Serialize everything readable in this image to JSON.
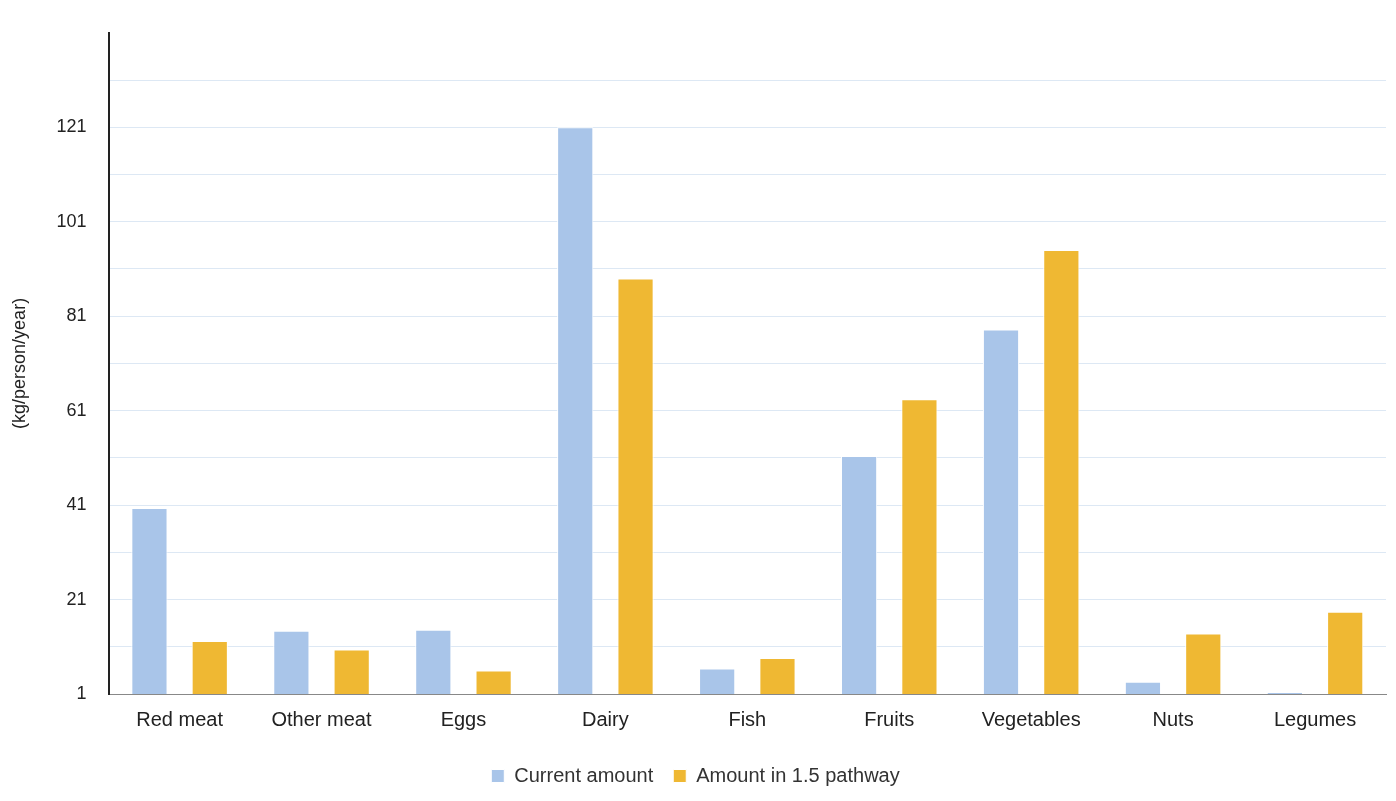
{
  "chart_data": {
    "type": "bar",
    "ylabel": "(kg/person/year)",
    "categories": [
      "Red meat",
      "Other meat",
      "Eggs",
      "Dairy",
      "Fish",
      "Fruits",
      "Vegetables",
      "Nuts",
      "Legumes"
    ],
    "series": [
      {
        "name": "Current amount",
        "color": "#a9c5e9",
        "values": [
          40.4,
          14.4,
          14.6,
          121,
          6.4,
          51.4,
          78.2,
          3.6,
          1.4
        ]
      },
      {
        "name": "Amount in 1.5 pathway",
        "color": "#efb833",
        "values": [
          12.2,
          10.4,
          6,
          89,
          8.6,
          63.4,
          95,
          13.8,
          18.4
        ]
      }
    ],
    "ylim": [
      1,
      141
    ],
    "yticks": [
      1,
      {
        "value": 11,
        "label": null
      },
      21,
      {
        "value": 31,
        "label": null
      },
      41,
      {
        "value": 51,
        "label": null
      },
      61,
      {
        "value": 71,
        "label": null
      },
      81,
      {
        "value": 91,
        "label": null
      },
      101,
      {
        "value": 111,
        "label": null
      },
      121,
      {
        "value": 131,
        "label": null
      }
    ],
    "grid": "y",
    "legend": "bottom"
  }
}
